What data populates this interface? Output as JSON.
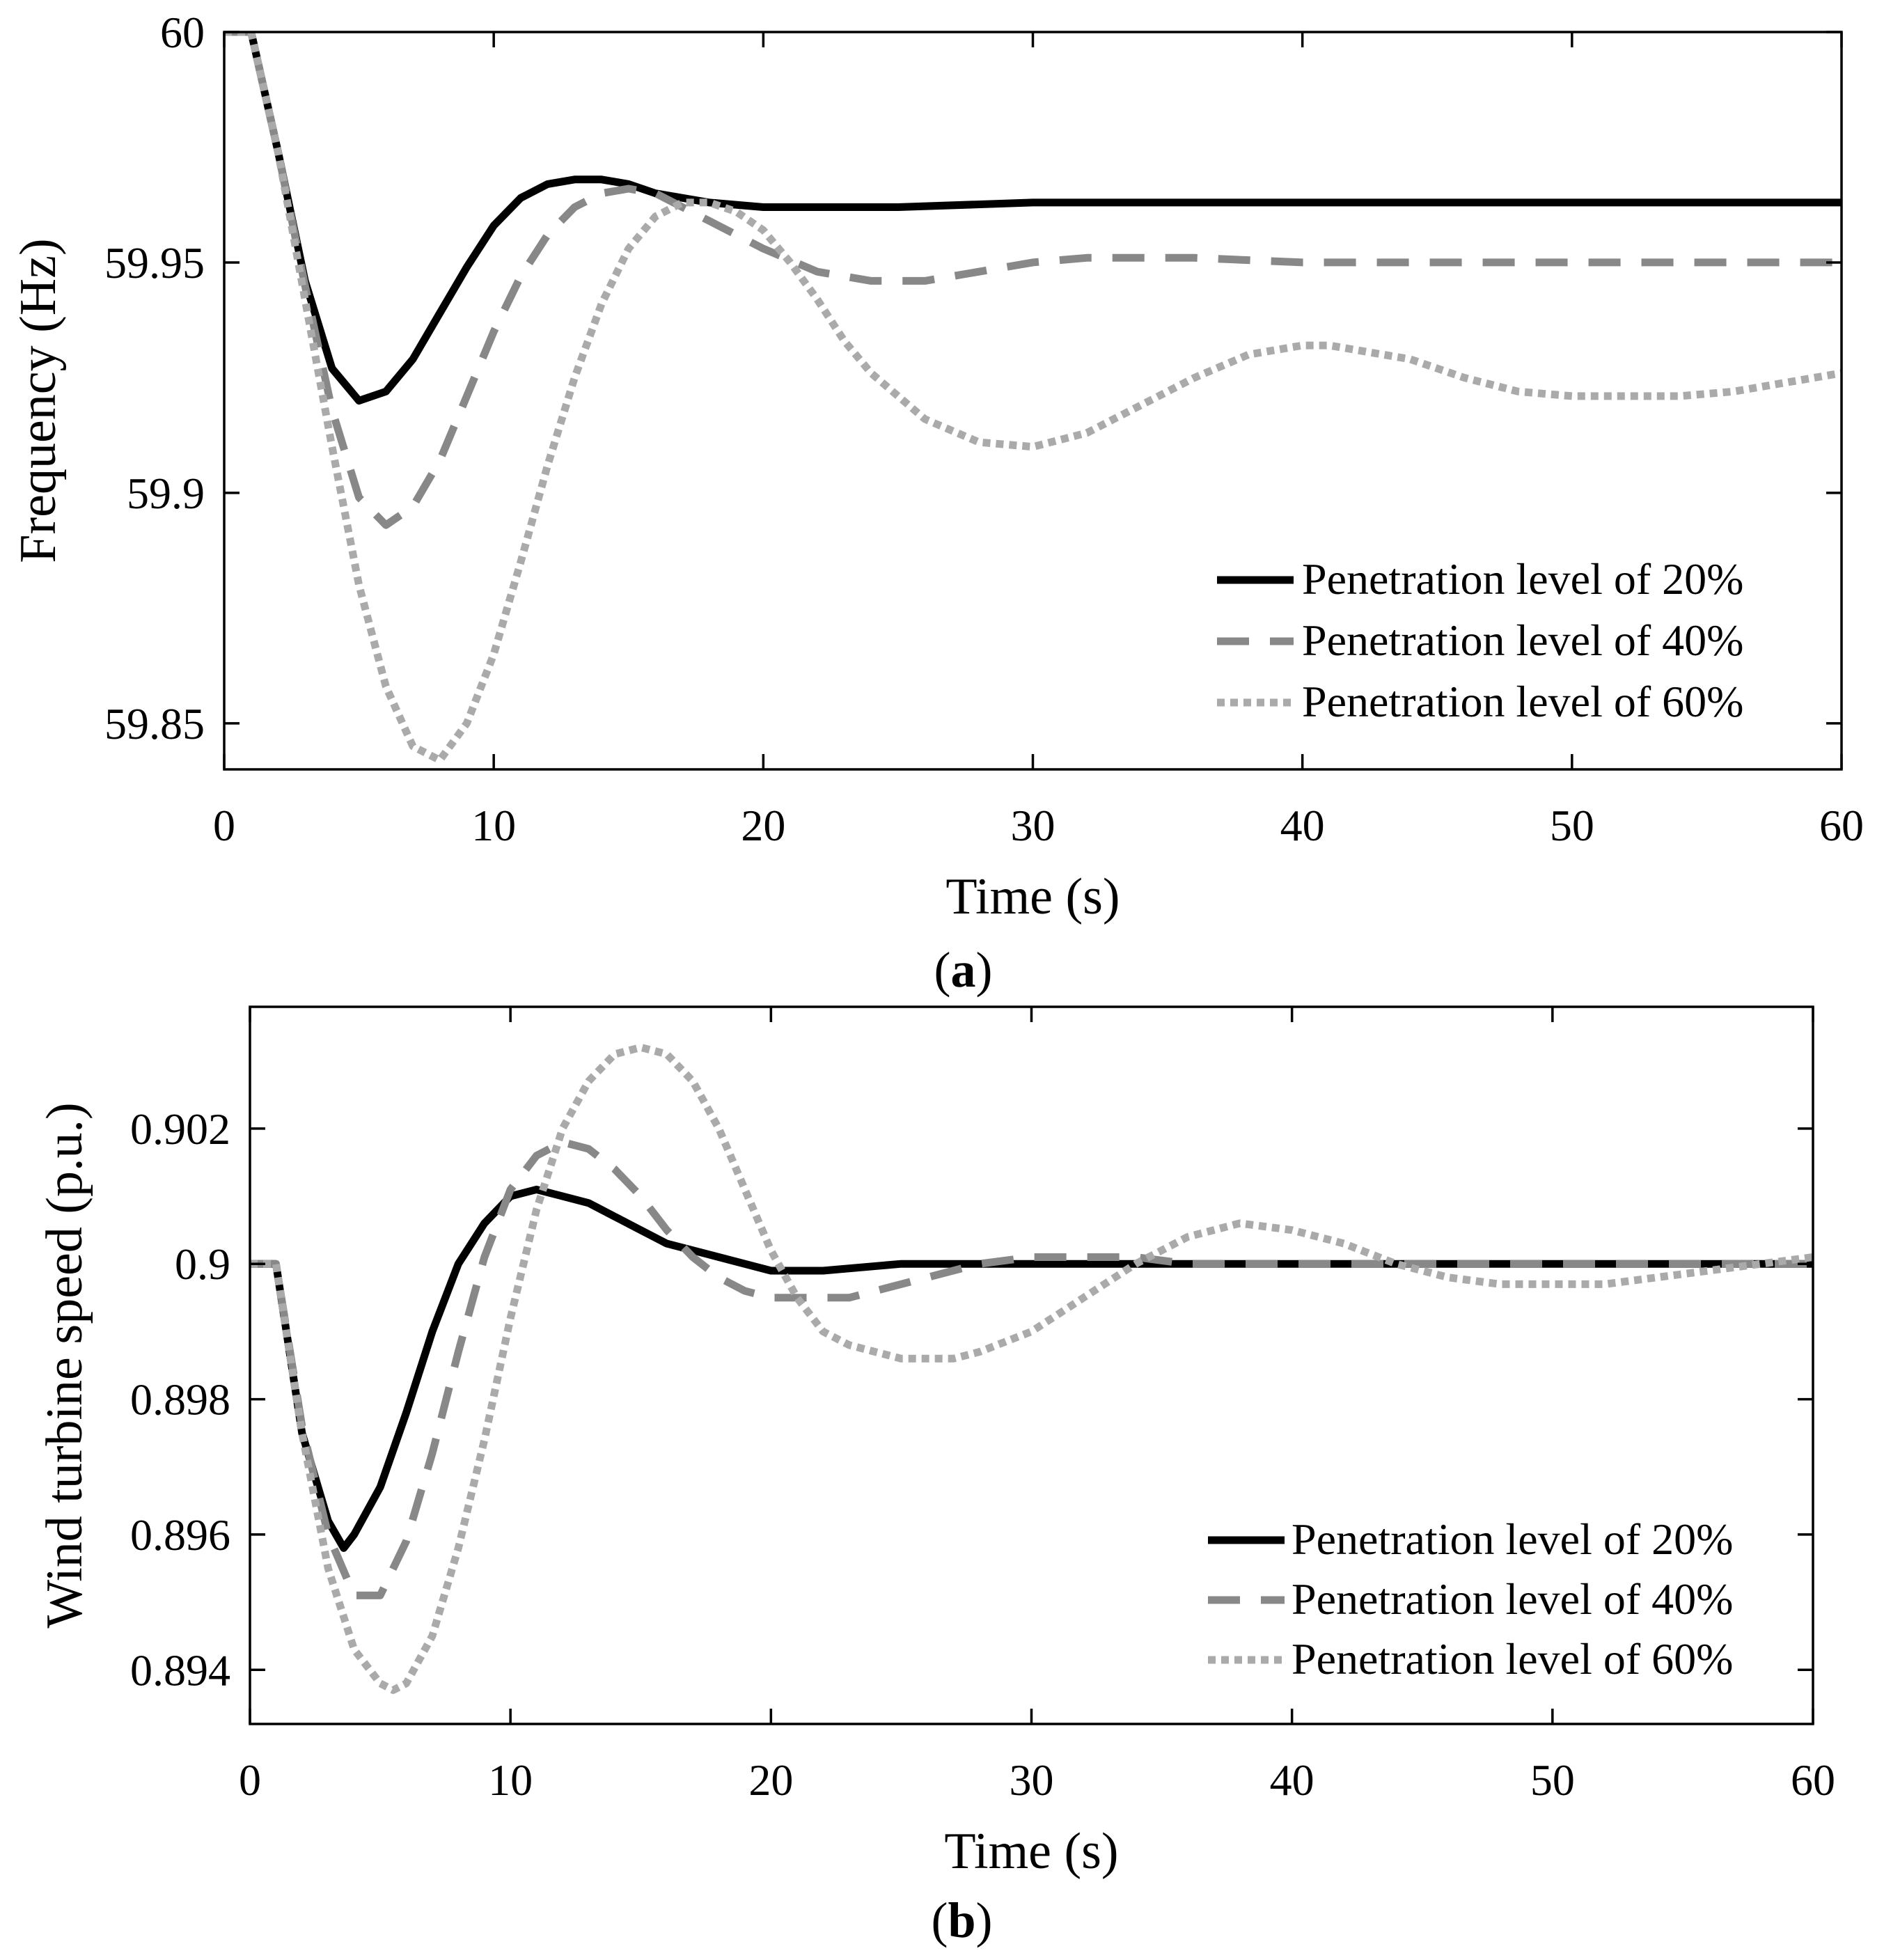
{
  "chart_data": [
    {
      "type": "line",
      "panel_label": "a",
      "xlabel": "Time (s)",
      "ylabel": "Frequency (Hz)",
      "xlim": [
        0,
        60
      ],
      "ylim": [
        59.84,
        60.0
      ],
      "xticks": [
        0,
        10,
        20,
        30,
        40,
        50,
        60
      ],
      "yticks": [
        59.85,
        59.9,
        59.95,
        60
      ],
      "ytick_labels": [
        "59.85",
        "59.9",
        "59.95",
        "60"
      ],
      "legend_position": "bottom-right",
      "series": [
        {
          "name": "Penetration level of 20%",
          "style": "solid",
          "color": "#000000",
          "x": [
            0,
            1,
            2,
            3,
            4,
            5,
            6,
            7,
            8,
            9,
            10,
            11,
            12,
            13,
            14,
            15,
            16,
            18,
            20,
            25,
            30,
            40,
            50,
            60
          ],
          "y": [
            60,
            60,
            59.974,
            59.946,
            59.927,
            59.92,
            59.922,
            59.929,
            59.939,
            59.949,
            59.958,
            59.964,
            59.967,
            59.968,
            59.968,
            59.967,
            59.965,
            59.963,
            59.962,
            59.962,
            59.963,
            59.963,
            59.963,
            59.963
          ]
        },
        {
          "name": "Penetration level of 40%",
          "style": "dashed",
          "color": "#888888",
          "x": [
            0,
            1,
            2,
            3,
            4,
            5,
            6,
            7,
            8,
            9,
            10,
            11,
            12,
            13,
            14,
            15,
            16,
            17,
            18,
            20,
            22,
            24,
            26,
            28,
            30,
            32,
            34,
            36,
            40,
            45,
            50,
            55,
            60
          ],
          "y": [
            60,
            60,
            59.974,
            59.945,
            59.918,
            59.899,
            59.893,
            59.897,
            59.907,
            59.921,
            59.935,
            59.947,
            59.956,
            59.962,
            59.965,
            59.966,
            59.965,
            59.962,
            59.959,
            59.953,
            59.948,
            59.946,
            59.946,
            59.948,
            59.95,
            59.951,
            59.951,
            59.951,
            59.95,
            59.95,
            59.95,
            59.95,
            59.95
          ]
        },
        {
          "name": "Penetration level of 60%",
          "style": "dotted",
          "color": "#aaaaaa",
          "x": [
            0,
            1,
            2,
            3,
            4,
            5,
            6,
            7,
            8,
            9,
            10,
            11,
            12,
            13,
            14,
            15,
            16,
            17,
            18,
            19,
            20,
            21,
            22,
            23,
            24,
            26,
            28,
            30,
            32,
            34,
            36,
            38,
            40,
            41,
            42,
            44,
            46,
            48,
            50,
            52,
            54,
            56,
            58,
            60
          ],
          "y": [
            60,
            60,
            59.974,
            59.942,
            59.91,
            59.88,
            59.858,
            59.845,
            59.842,
            59.85,
            59.865,
            59.885,
            59.906,
            59.925,
            59.941,
            59.953,
            59.96,
            59.963,
            59.963,
            59.961,
            59.957,
            59.95,
            59.942,
            59.933,
            59.926,
            59.916,
            59.911,
            59.91,
            59.913,
            59.919,
            59.925,
            59.93,
            59.932,
            59.932,
            59.931,
            59.929,
            59.925,
            59.922,
            59.921,
            59.921,
            59.921,
            59.922,
            59.924,
            59.926
          ]
        }
      ]
    },
    {
      "type": "line",
      "panel_label": "b",
      "xlabel": "Time (s)",
      "ylabel": "Wind turbine speed (p.u.)",
      "xlim": [
        0,
        60
      ],
      "ylim": [
        0.8932,
        0.9038
      ],
      "xticks": [
        0,
        10,
        20,
        30,
        40,
        50,
        60
      ],
      "yticks": [
        0.894,
        0.896,
        0.898,
        0.9,
        0.902
      ],
      "ytick_labels": [
        "0.894",
        "0.896",
        "0.898",
        "0.9",
        "0.902"
      ],
      "legend_position": "bottom-right",
      "series": [
        {
          "name": "Penetration level of 20%",
          "style": "solid",
          "color": "#000000",
          "x": [
            0,
            1,
            2,
            3,
            3.6,
            4,
            5,
            6,
            7,
            8,
            9,
            10,
            11,
            12,
            13,
            14,
            15,
            16,
            18,
            20,
            22,
            25,
            28,
            30,
            35,
            40,
            50,
            60
          ],
          "y": [
            0.9,
            0.9,
            0.8975,
            0.8962,
            0.8958,
            0.896,
            0.8967,
            0.8978,
            0.899,
            0.9,
            0.9006,
            0.901,
            0.9011,
            0.901,
            0.9009,
            0.9007,
            0.9005,
            0.9003,
            0.9001,
            0.8999,
            0.8999,
            0.9,
            0.9,
            0.9,
            0.9,
            0.9,
            0.9,
            0.9
          ]
        },
        {
          "name": "Penetration level of 40%",
          "style": "dashed",
          "color": "#888888",
          "x": [
            0,
            1,
            2,
            3,
            4,
            5,
            6,
            7,
            8,
            9,
            10,
            11,
            12,
            13,
            14,
            15,
            16,
            17,
            18,
            19,
            20,
            21,
            22,
            23,
            24,
            26,
            28,
            30,
            32,
            34,
            36,
            40,
            45,
            50,
            55,
            60
          ],
          "y": [
            0.9,
            0.9,
            0.8976,
            0.896,
            0.8951,
            0.8951,
            0.8959,
            0.8972,
            0.8987,
            0.9001,
            0.9011,
            0.9016,
            0.9018,
            0.9017,
            0.9014,
            0.901,
            0.9005,
            0.9001,
            0.8998,
            0.8996,
            0.8995,
            0.8995,
            0.8995,
            0.8995,
            0.8996,
            0.8998,
            0.9,
            0.9001,
            0.9001,
            0.9001,
            0.9,
            0.9,
            0.9,
            0.9,
            0.9,
            0.9
          ]
        },
        {
          "name": "Penetration level of 60%",
          "style": "dotted",
          "color": "#aaaaaa",
          "x": [
            0,
            1,
            2,
            3,
            4,
            5,
            5.5,
            6,
            7,
            8,
            9,
            10,
            11,
            12,
            13,
            14,
            15,
            16,
            17,
            18,
            19,
            20,
            21,
            22,
            23,
            24,
            25,
            26,
            27,
            28,
            30,
            32,
            34,
            36,
            38,
            40,
            42,
            44,
            46,
            48,
            50,
            52,
            54,
            56,
            58,
            60
          ],
          "y": [
            0.9,
            0.9,
            0.8975,
            0.8955,
            0.8943,
            0.8938,
            0.8937,
            0.8938,
            0.8945,
            0.8958,
            0.8974,
            0.8992,
            0.9008,
            0.902,
            0.9027,
            0.9031,
            0.9032,
            0.9031,
            0.9027,
            0.902,
            0.9011,
            0.9002,
            0.8995,
            0.899,
            0.8988,
            0.8987,
            0.8986,
            0.8986,
            0.8986,
            0.8987,
            0.899,
            0.8995,
            0.9,
            0.9004,
            0.9006,
            0.9005,
            0.9003,
            0.9,
            0.8998,
            0.8997,
            0.8997,
            0.8997,
            0.8998,
            0.8999,
            0.9,
            0.9001
          ]
        }
      ]
    }
  ]
}
